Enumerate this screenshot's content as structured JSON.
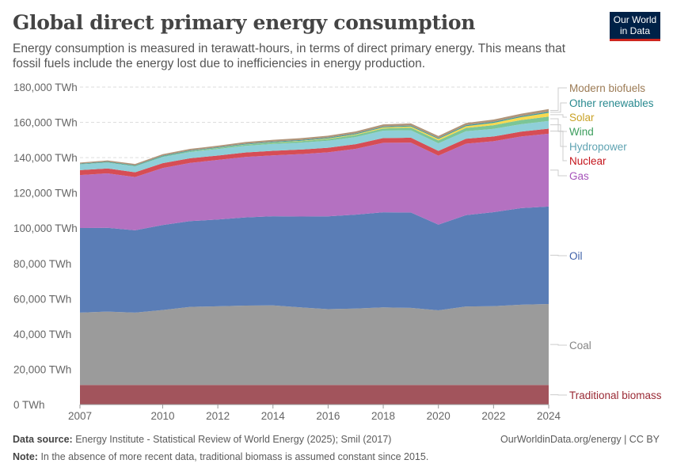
{
  "header": {
    "title": "Global direct primary energy consumption",
    "subtitle": "Energy consumption is measured in terawatt-hours, in terms of direct primary energy. This means that fossil fuels include the energy lost due to inefficiencies in energy production.",
    "logo": "Our World in Data"
  },
  "footer": {
    "source_label": "Data source:",
    "source": "Energy Institute - Statistical Review of World Energy (2025); Smil (2017)",
    "note_label": "Note:",
    "note": "In the absence of more recent data, traditional biomass is assumed constant since 2015.",
    "credit": "OurWorldinData.org/energy | CC BY"
  },
  "chart_data": {
    "type": "area",
    "stacked": true,
    "title": "",
    "xlabel": "",
    "ylabel": "",
    "ylim": [
      0,
      180000
    ],
    "xlim": [
      2007,
      2024
    ],
    "grid": true,
    "legend_placement": "right (inline labels)",
    "yticks": [
      0,
      20000,
      40000,
      60000,
      80000,
      100000,
      120000,
      140000,
      160000,
      180000
    ],
    "ytick_labels": [
      "0 TWh",
      "20,000 TWh",
      "40,000 TWh",
      "60,000 TWh",
      "80,000 TWh",
      "100,000 TWh",
      "120,000 TWh",
      "140,000 TWh",
      "160,000 TWh",
      "180,000 TWh"
    ],
    "xticks": [
      2007,
      2010,
      2012,
      2014,
      2016,
      2018,
      2020,
      2022,
      2024
    ],
    "xtick_labels": [
      "2007",
      "2010",
      "2012",
      "2014",
      "2016",
      "2018",
      "2020",
      "2022",
      "2024"
    ],
    "x": [
      2007,
      2008,
      2009,
      2010,
      2011,
      2012,
      2013,
      2014,
      2015,
      2016,
      2017,
      2018,
      2019,
      2020,
      2021,
      2022,
      2023,
      2024
    ],
    "series": [
      {
        "name": "Traditional biomass",
        "color": "#a2545c",
        "label_color": "#9a2a35",
        "values": [
          11100,
          11100,
          11100,
          11100,
          11100,
          11100,
          11100,
          11100,
          11100,
          11100,
          11100,
          11100,
          11100,
          11100,
          11100,
          11100,
          11100,
          11100
        ]
      },
      {
        "name": "Coal",
        "color": "#9b9b9b",
        "label_color": "#858585",
        "values": [
          41000,
          41600,
          41000,
          42500,
          44300,
          44600,
          45000,
          45100,
          44000,
          43000,
          43300,
          44000,
          43700,
          42300,
          44500,
          44700,
          45500,
          45900
        ]
      },
      {
        "name": "Oil",
        "color": "#5a7db6",
        "label_color": "#3d5fa8",
        "values": [
          48000,
          47500,
          46700,
          48200,
          48600,
          49200,
          50000,
          50600,
          51500,
          52600,
          53300,
          53900,
          54100,
          48600,
          51800,
          53300,
          54800,
          55300
        ]
      },
      {
        "name": "Gas",
        "color": "#b471c1",
        "label_color": "#a652ba",
        "values": [
          30000,
          30900,
          30200,
          32300,
          33000,
          33800,
          34300,
          34500,
          35400,
          36300,
          37300,
          39400,
          39600,
          39100,
          40500,
          40200,
          40600,
          41300
        ]
      },
      {
        "name": "Nuclear",
        "color": "#d64d55",
        "label_color": "#c4151c",
        "values": [
          2800,
          2750,
          2700,
          2770,
          2650,
          2470,
          2490,
          2540,
          2570,
          2610,
          2640,
          2700,
          2800,
          2690,
          2800,
          2680,
          2740,
          2820
        ]
      },
      {
        "name": "Hydropower",
        "color": "#8fcfd8",
        "label_color": "#5fa3b2",
        "values": [
          3200,
          3300,
          3300,
          3450,
          3550,
          3700,
          3800,
          3900,
          3900,
          4000,
          4050,
          4200,
          4250,
          4350,
          4270,
          4330,
          4240,
          4380
        ]
      },
      {
        "name": "Wind",
        "color": "#7cc596",
        "label_color": "#3d9e5e",
        "values": [
          170,
          220,
          280,
          340,
          440,
          520,
          640,
          710,
          830,
          960,
          1130,
          1270,
          1420,
          1600,
          1850,
          2100,
          2330,
          2500
        ]
      },
      {
        "name": "Solar",
        "color": "#f8d94f",
        "label_color": "#c9a227",
        "values": [
          8,
          12,
          20,
          32,
          64,
          100,
          140,
          190,
          250,
          330,
          440,
          570,
          700,
          850,
          1030,
          1300,
          1630,
          2130
        ]
      },
      {
        "name": "Other renewables",
        "color": "#3a9aa3",
        "label_color": "#28898f",
        "values": [
          300,
          310,
          320,
          340,
          360,
          380,
          400,
          420,
          440,
          460,
          470,
          490,
          510,
          530,
          560,
          570,
          580,
          600
        ]
      },
      {
        "name": "Modern biofuels",
        "color": "#b0957a",
        "label_color": "#9c7b55",
        "values": [
          600,
          720,
          800,
          900,
          900,
          900,
          970,
          1030,
          1050,
          1080,
          1120,
          1200,
          1250,
          1150,
          1250,
          1300,
          1400,
          1500
        ]
      }
    ]
  }
}
